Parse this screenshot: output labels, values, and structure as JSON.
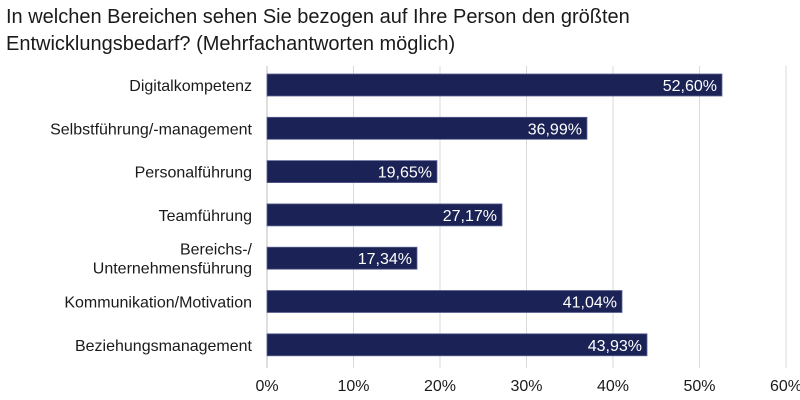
{
  "chart_data": {
    "type": "bar",
    "orientation": "horizontal",
    "title": "In welchen Bereichen sehen Sie bezogen auf Ihre Person den größten Entwicklungsbedarf? (Mehrfachantworten möglich)",
    "categories": [
      "Digitalkompetenz",
      "Selbstführung/-management",
      "Personalführung",
      "Teamführung",
      "Bereichs-/\nUnternehmensführung",
      "Kommunikation/Motivation",
      "Beziehungsmanagement"
    ],
    "values": [
      52.6,
      36.99,
      19.65,
      27.17,
      17.34,
      41.04,
      43.93
    ],
    "value_labels": [
      "52,60%",
      "36,99%",
      "19,65%",
      "27,17%",
      "17,34%",
      "41,04%",
      "43,93%"
    ],
    "xlim": [
      0,
      60
    ],
    "xticks": [
      0,
      10,
      20,
      30,
      40,
      50,
      60
    ],
    "xtick_labels": [
      "0%",
      "10%",
      "20%",
      "30%",
      "40%",
      "50%",
      "60%"
    ],
    "bar_color": "#1b2356",
    "grid": true
  }
}
